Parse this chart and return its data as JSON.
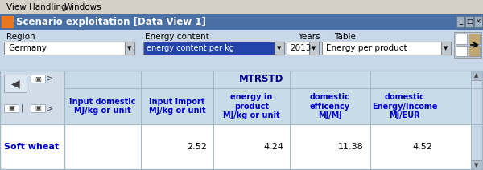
{
  "menu_bar_text": [
    "View Handling",
    "Windows"
  ],
  "menu_bar_bg": "#d4d0c8",
  "title_bar_text": "Scenario exploitation [Data View 1]",
  "title_bar_bg": "#4a6fa5",
  "title_bar_text_color": "#ffffff",
  "window_bg": "#c8d8e8",
  "label_region": "Region",
  "label_energy": "Energy content",
  "label_years": "Years",
  "label_table": "Table",
  "dropdown_region": "Germany",
  "dropdown_energy": "energy content per kg",
  "dropdown_years": "2013",
  "dropdown_table": "Energy per product",
  "table_header": "MTRSTD",
  "col_headers": [
    "input domestic\nMJ/kg or unit",
    "input import\nMJ/kg or unit",
    "energy in\nproduct\nMJ/kg or unit",
    "domestic\nefficency\nMJ/MJ",
    "domestic\nEnergy/Income\nMJ/EUR"
  ],
  "row_label": "Soft wheat",
  "row_values": [
    "2.52",
    "4.24",
    "11.38",
    "4.52",
    ""
  ],
  "table_bg": "#dce8f0",
  "header_bg": "#c8dce8",
  "col_header_color": "#0000cc",
  "row_label_color": "#0000cc",
  "header_text_color": "#00008b",
  "border_color": "#a0b8c8",
  "button_bg": "#c8d8e8",
  "nav_bg": "#d0dce8"
}
